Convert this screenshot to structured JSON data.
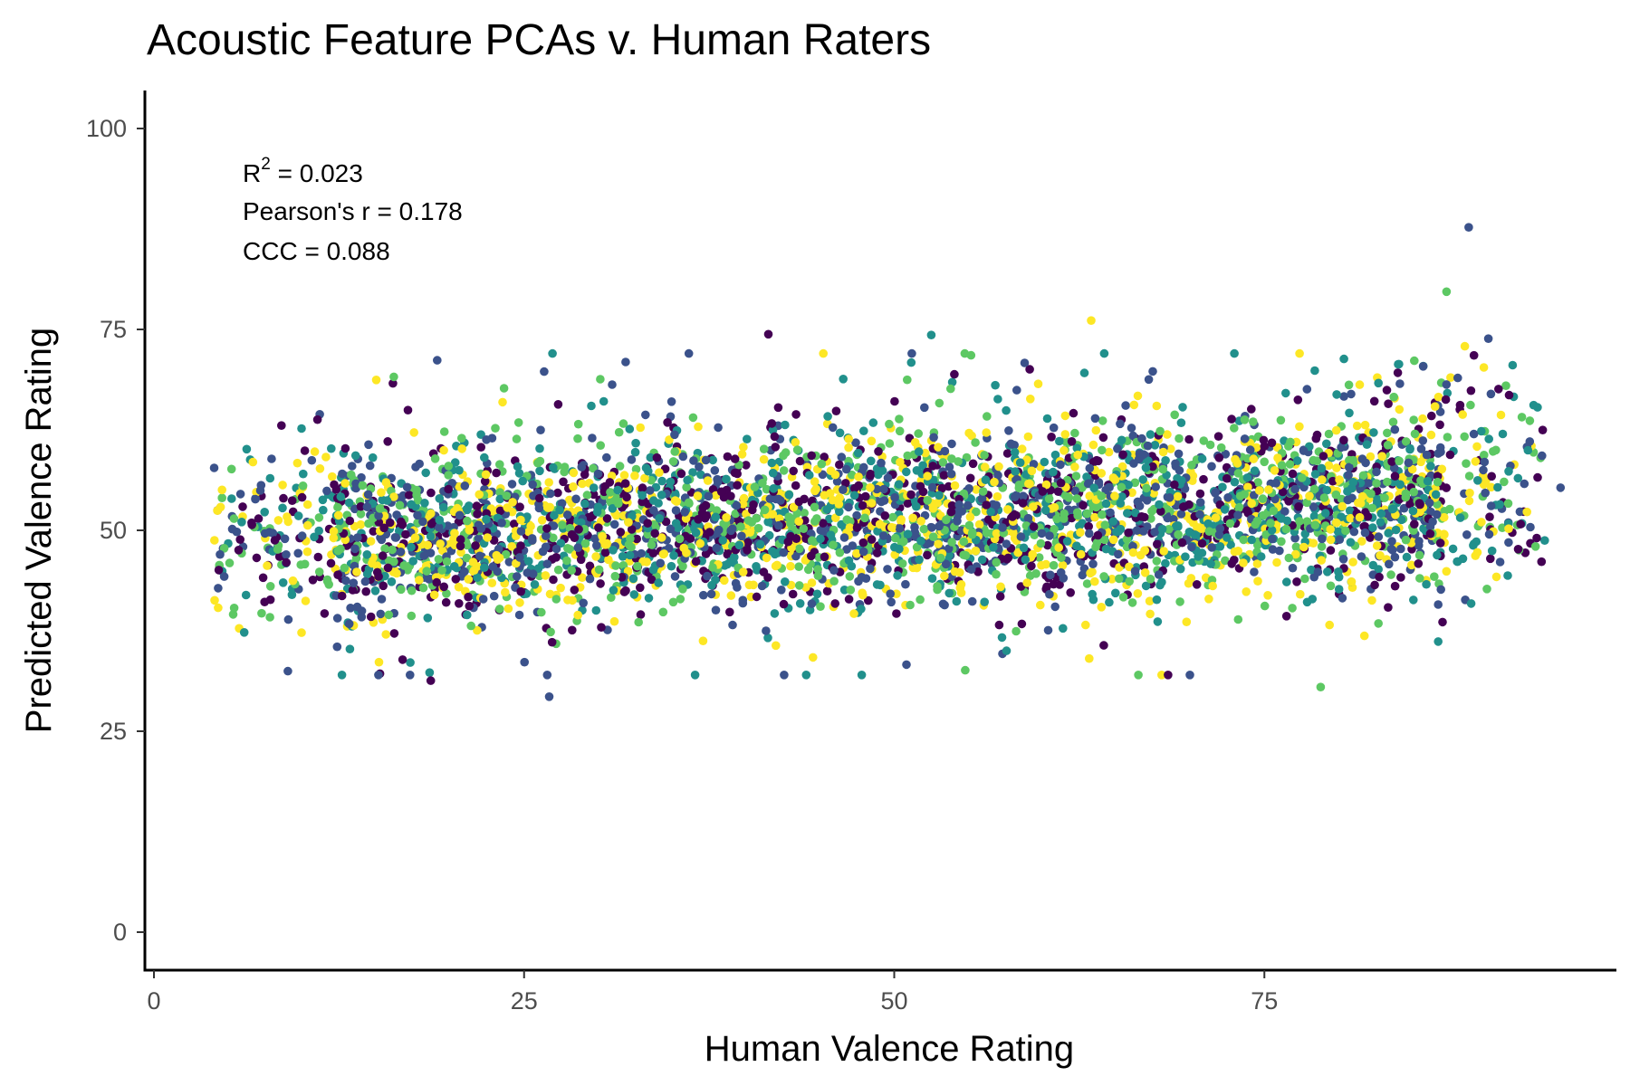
{
  "chart_data": {
    "type": "scatter",
    "title": "Acoustic Feature PCAs v. Human Raters",
    "xlabel": "Human Valence Rating",
    "ylabel": "Predicted Valence Rating",
    "xlim": [
      -1.5,
      98
    ],
    "ylim": [
      -5,
      105
    ],
    "x_ticks": [
      "0",
      "25",
      "50",
      "75"
    ],
    "y_ticks": [
      "0",
      "25",
      "50",
      "75",
      "100"
    ],
    "grid": false,
    "legend": "none",
    "annotations": {
      "r2_label": "R",
      "r2_sup": "2",
      "r2_value": " = 0.023",
      "pearson": "Pearson's r = 0.178",
      "ccc": "CCC = 0.088"
    },
    "palette": [
      "#440154",
      "#3b528b",
      "#21908c",
      "#5dc863",
      "#fde725"
    ],
    "point_cloud": {
      "n": 4200,
      "x_range": [
        4,
        94
      ],
      "center_line": {
        "intercept": 48.5,
        "slope": 0.06
      },
      "sd": 5.2
    },
    "highlighted_points": [
      {
        "x": 88.8,
        "y": 87.7
      },
      {
        "x": 87.3,
        "y": 79.7
      },
      {
        "x": 41.5,
        "y": 74.4
      },
      {
        "x": 52.5,
        "y": 74.3
      },
      {
        "x": 63.3,
        "y": 76.1
      },
      {
        "x": 26.7,
        "y": 29.3
      },
      {
        "x": 78.8,
        "y": 30.5
      },
      {
        "x": 18.7,
        "y": 31.3
      },
      {
        "x": 6.1,
        "y": 37.3
      },
      {
        "x": 4.1,
        "y": 41.3
      },
      {
        "x": 95.0,
        "y": 55.3
      },
      {
        "x": 16.2,
        "y": 69.1
      }
    ]
  }
}
